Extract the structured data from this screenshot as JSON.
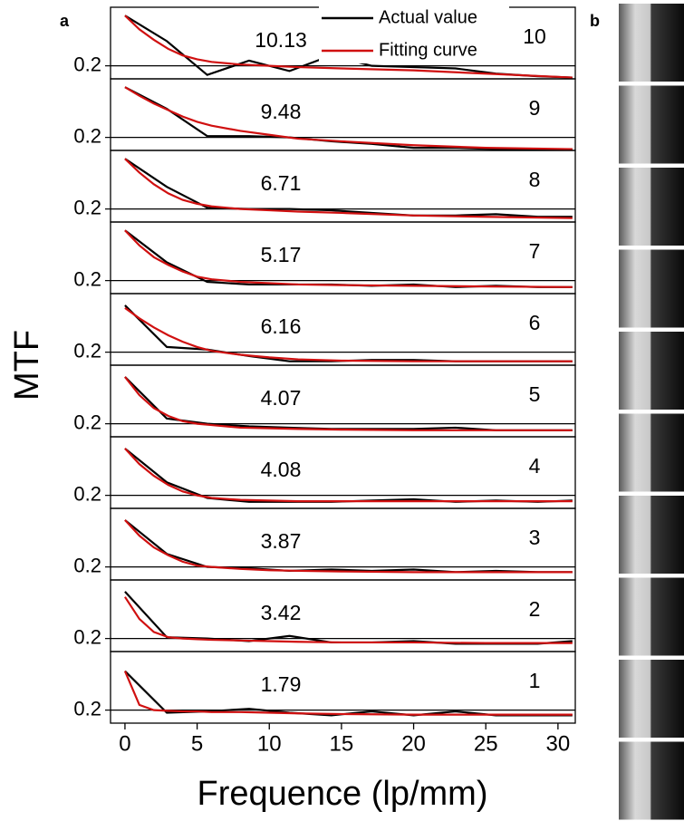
{
  "chart_data": {
    "type": "line",
    "panel_labels": [
      "a",
      "b"
    ],
    "ylabel": "MTF",
    "xlabel": "Frequence (lp/mm)",
    "xlim": [
      -1,
      31.2
    ],
    "xticks": [
      0,
      5,
      10,
      15,
      20,
      25,
      30
    ],
    "ylim": [
      0.1,
      0.65
    ],
    "yticks": [
      0.2
    ],
    "series": [
      {
        "name": "Actual value",
        "color": "#000000"
      },
      {
        "name": "Fitting curve",
        "color": "#d01010"
      }
    ],
    "panels": [
      {
        "annotation": "10.13",
        "number": "10",
        "series": [
          {
            "x": [
              0,
              2.9,
              5.7,
              8.6,
              11.4,
              14.3,
              17.1,
              20,
              22.9,
              25.7,
              28.6,
              31
            ],
            "values": [
              0.586,
              0.39,
              0.13,
              0.24,
              0.16,
              0.28,
              0.2,
              0.19,
              0.18,
              0.14,
              0.12,
              0.11
            ]
          },
          {
            "x": [
              0,
              1,
              2,
              3,
              4,
              5,
              6,
              8,
              10,
              12,
              15,
              20,
              25,
              31
            ],
            "values": [
              0.586,
              0.48,
              0.4,
              0.33,
              0.28,
              0.25,
              0.23,
              0.21,
              0.2,
              0.19,
              0.18,
              0.165,
              0.14,
              0.11
            ]
          }
        ]
      },
      {
        "annotation": "9.48",
        "number": "9",
        "series": [
          {
            "x": [
              0,
              2.9,
              5.7,
              8.6,
              11.4,
              14.3,
              17.1,
              20,
              22.9,
              25.7,
              28.6,
              31
            ],
            "values": [
              0.586,
              0.42,
              0.21,
              0.21,
              0.2,
              0.17,
              0.15,
              0.12,
              0.12,
              0.11,
              0.11,
              0.11
            ]
          },
          {
            "x": [
              0,
              1,
              2,
              3,
              4,
              5,
              6,
              8,
              10,
              12,
              15,
              20,
              25,
              31
            ],
            "values": [
              0.586,
              0.52,
              0.46,
              0.41,
              0.36,
              0.32,
              0.29,
              0.25,
              0.22,
              0.19,
              0.17,
              0.14,
              0.12,
              0.11
            ]
          }
        ]
      },
      {
        "annotation": "6.71",
        "number": "8",
        "series": [
          {
            "x": [
              0,
              2.9,
              5.7,
              8.6,
              11.4,
              14.3,
              17.1,
              20,
              22.9,
              25.7,
              28.6,
              31
            ],
            "values": [
              0.586,
              0.37,
              0.21,
              0.2,
              0.2,
              0.19,
              0.17,
              0.15,
              0.15,
              0.16,
              0.14,
              0.14
            ]
          },
          {
            "x": [
              0,
              1,
              2,
              3,
              4,
              5,
              6,
              8,
              10,
              12,
              15,
              20,
              25,
              31
            ],
            "values": [
              0.586,
              0.48,
              0.39,
              0.32,
              0.27,
              0.24,
              0.22,
              0.2,
              0.19,
              0.18,
              0.17,
              0.15,
              0.14,
              0.13
            ]
          }
        ]
      },
      {
        "annotation": "5.17",
        "number": "7",
        "series": [
          {
            "x": [
              0,
              2.9,
              5.7,
              8.6,
              11.4,
              14.3,
              17.1,
              20,
              22.9,
              25.7,
              28.6,
              31
            ],
            "values": [
              0.586,
              0.34,
              0.19,
              0.17,
              0.17,
              0.17,
              0.16,
              0.17,
              0.15,
              0.16,
              0.15,
              0.15
            ]
          },
          {
            "x": [
              0,
              1,
              2,
              3,
              4,
              5,
              6,
              8,
              10,
              12,
              15,
              20,
              25,
              31
            ],
            "values": [
              0.586,
              0.47,
              0.38,
              0.32,
              0.27,
              0.23,
              0.21,
              0.19,
              0.18,
              0.17,
              0.165,
              0.16,
              0.155,
              0.15
            ]
          }
        ]
      },
      {
        "annotation": "6.16",
        "number": "6",
        "series": [
          {
            "x": [
              0,
              2.9,
              5.7,
              8.6,
              11.4,
              14.3,
              17.1,
              20,
              22.9,
              25.7,
              28.6,
              31
            ],
            "values": [
              0.56,
              0.24,
              0.22,
              0.17,
              0.13,
              0.13,
              0.14,
              0.14,
              0.13,
              0.13,
              0.13,
              0.13
            ]
          },
          {
            "x": [
              0,
              1,
              2,
              3,
              4,
              5,
              6,
              8,
              10,
              12,
              15,
              20,
              25,
              31
            ],
            "values": [
              0.54,
              0.46,
              0.39,
              0.33,
              0.28,
              0.24,
              0.21,
              0.18,
              0.16,
              0.145,
              0.135,
              0.13,
              0.13,
              0.13
            ]
          }
        ]
      },
      {
        "annotation": "4.07",
        "number": "5",
        "series": [
          {
            "x": [
              0,
              2.9,
              5.7,
              8.6,
              11.4,
              14.3,
              17.1,
              20,
              22.9,
              25.7,
              28.6,
              31
            ],
            "values": [
              0.56,
              0.24,
              0.2,
              0.18,
              0.17,
              0.16,
              0.16,
              0.16,
              0.17,
              0.15,
              0.15,
              0.15
            ]
          },
          {
            "x": [
              0,
              1,
              2,
              3,
              4,
              5,
              6,
              8,
              10,
              12,
              15,
              20,
              25,
              31
            ],
            "values": [
              0.56,
              0.42,
              0.32,
              0.26,
              0.22,
              0.2,
              0.19,
              0.17,
              0.165,
              0.16,
              0.155,
              0.15,
              0.15,
              0.15
            ]
          }
        ]
      },
      {
        "annotation": "4.08",
        "number": "4",
        "series": [
          {
            "x": [
              0,
              2.9,
              5.7,
              8.6,
              11.4,
              14.3,
              17.1,
              20,
              22.9,
              25.7,
              28.6,
              31
            ],
            "values": [
              0.56,
              0.3,
              0.18,
              0.15,
              0.15,
              0.15,
              0.16,
              0.17,
              0.15,
              0.16,
              0.15,
              0.16
            ]
          },
          {
            "x": [
              0,
              1,
              2,
              3,
              4,
              5,
              6,
              8,
              10,
              12,
              15,
              20,
              25,
              31
            ],
            "values": [
              0.56,
              0.44,
              0.35,
              0.28,
              0.23,
              0.2,
              0.18,
              0.165,
              0.16,
              0.155,
              0.155,
              0.155,
              0.155,
              0.155
            ]
          }
        ]
      },
      {
        "annotation": "3.87",
        "number": "3",
        "series": [
          {
            "x": [
              0,
              2.9,
              5.7,
              8.6,
              11.4,
              14.3,
              17.1,
              20,
              22.9,
              25.7,
              28.6,
              31
            ],
            "values": [
              0.56,
              0.3,
              0.2,
              0.19,
              0.17,
              0.18,
              0.17,
              0.18,
              0.16,
              0.17,
              0.16,
              0.16
            ]
          },
          {
            "x": [
              0,
              1,
              2,
              3,
              4,
              5,
              6,
              8,
              10,
              12,
              15,
              20,
              25,
              31
            ],
            "values": [
              0.56,
              0.44,
              0.35,
              0.29,
              0.24,
              0.21,
              0.2,
              0.185,
              0.175,
              0.17,
              0.165,
              0.16,
              0.16,
              0.16
            ]
          }
        ]
      },
      {
        "annotation": "3.42",
        "number": "2",
        "series": [
          {
            "x": [
              0,
              2.9,
              5.7,
              8.6,
              11.4,
              14.3,
              17.1,
              20,
              22.9,
              25.7,
              28.6,
              31
            ],
            "values": [
              0.56,
              0.21,
              0.2,
              0.18,
              0.22,
              0.17,
              0.17,
              0.18,
              0.16,
              0.16,
              0.16,
              0.18
            ]
          },
          {
            "x": [
              0,
              1,
              2,
              3,
              4,
              5,
              6,
              8,
              10,
              12,
              15,
              20,
              25,
              31
            ],
            "values": [
              0.52,
              0.35,
              0.25,
              0.21,
              0.2,
              0.195,
              0.19,
              0.185,
              0.18,
              0.175,
              0.17,
              0.17,
              0.165,
              0.165
            ]
          }
        ]
      },
      {
        "annotation": "1.79",
        "number": "1",
        "series": [
          {
            "x": [
              0,
              2.9,
              5.7,
              8.6,
              11.4,
              14.3,
              17.1,
              20,
              22.9,
              25.7,
              28.6,
              31
            ],
            "values": [
              0.5,
              0.18,
              0.19,
              0.21,
              0.18,
              0.16,
              0.19,
              0.16,
              0.19,
              0.16,
              0.16,
              0.16
            ]
          },
          {
            "x": [
              0,
              1,
              2,
              3,
              4,
              5,
              6,
              8,
              10,
              12,
              15,
              20,
              25,
              31
            ],
            "values": [
              0.5,
              0.24,
              0.2,
              0.195,
              0.19,
              0.19,
              0.185,
              0.185,
              0.18,
              0.175,
              0.17,
              0.165,
              0.165,
              0.165
            ]
          }
        ]
      }
    ]
  }
}
